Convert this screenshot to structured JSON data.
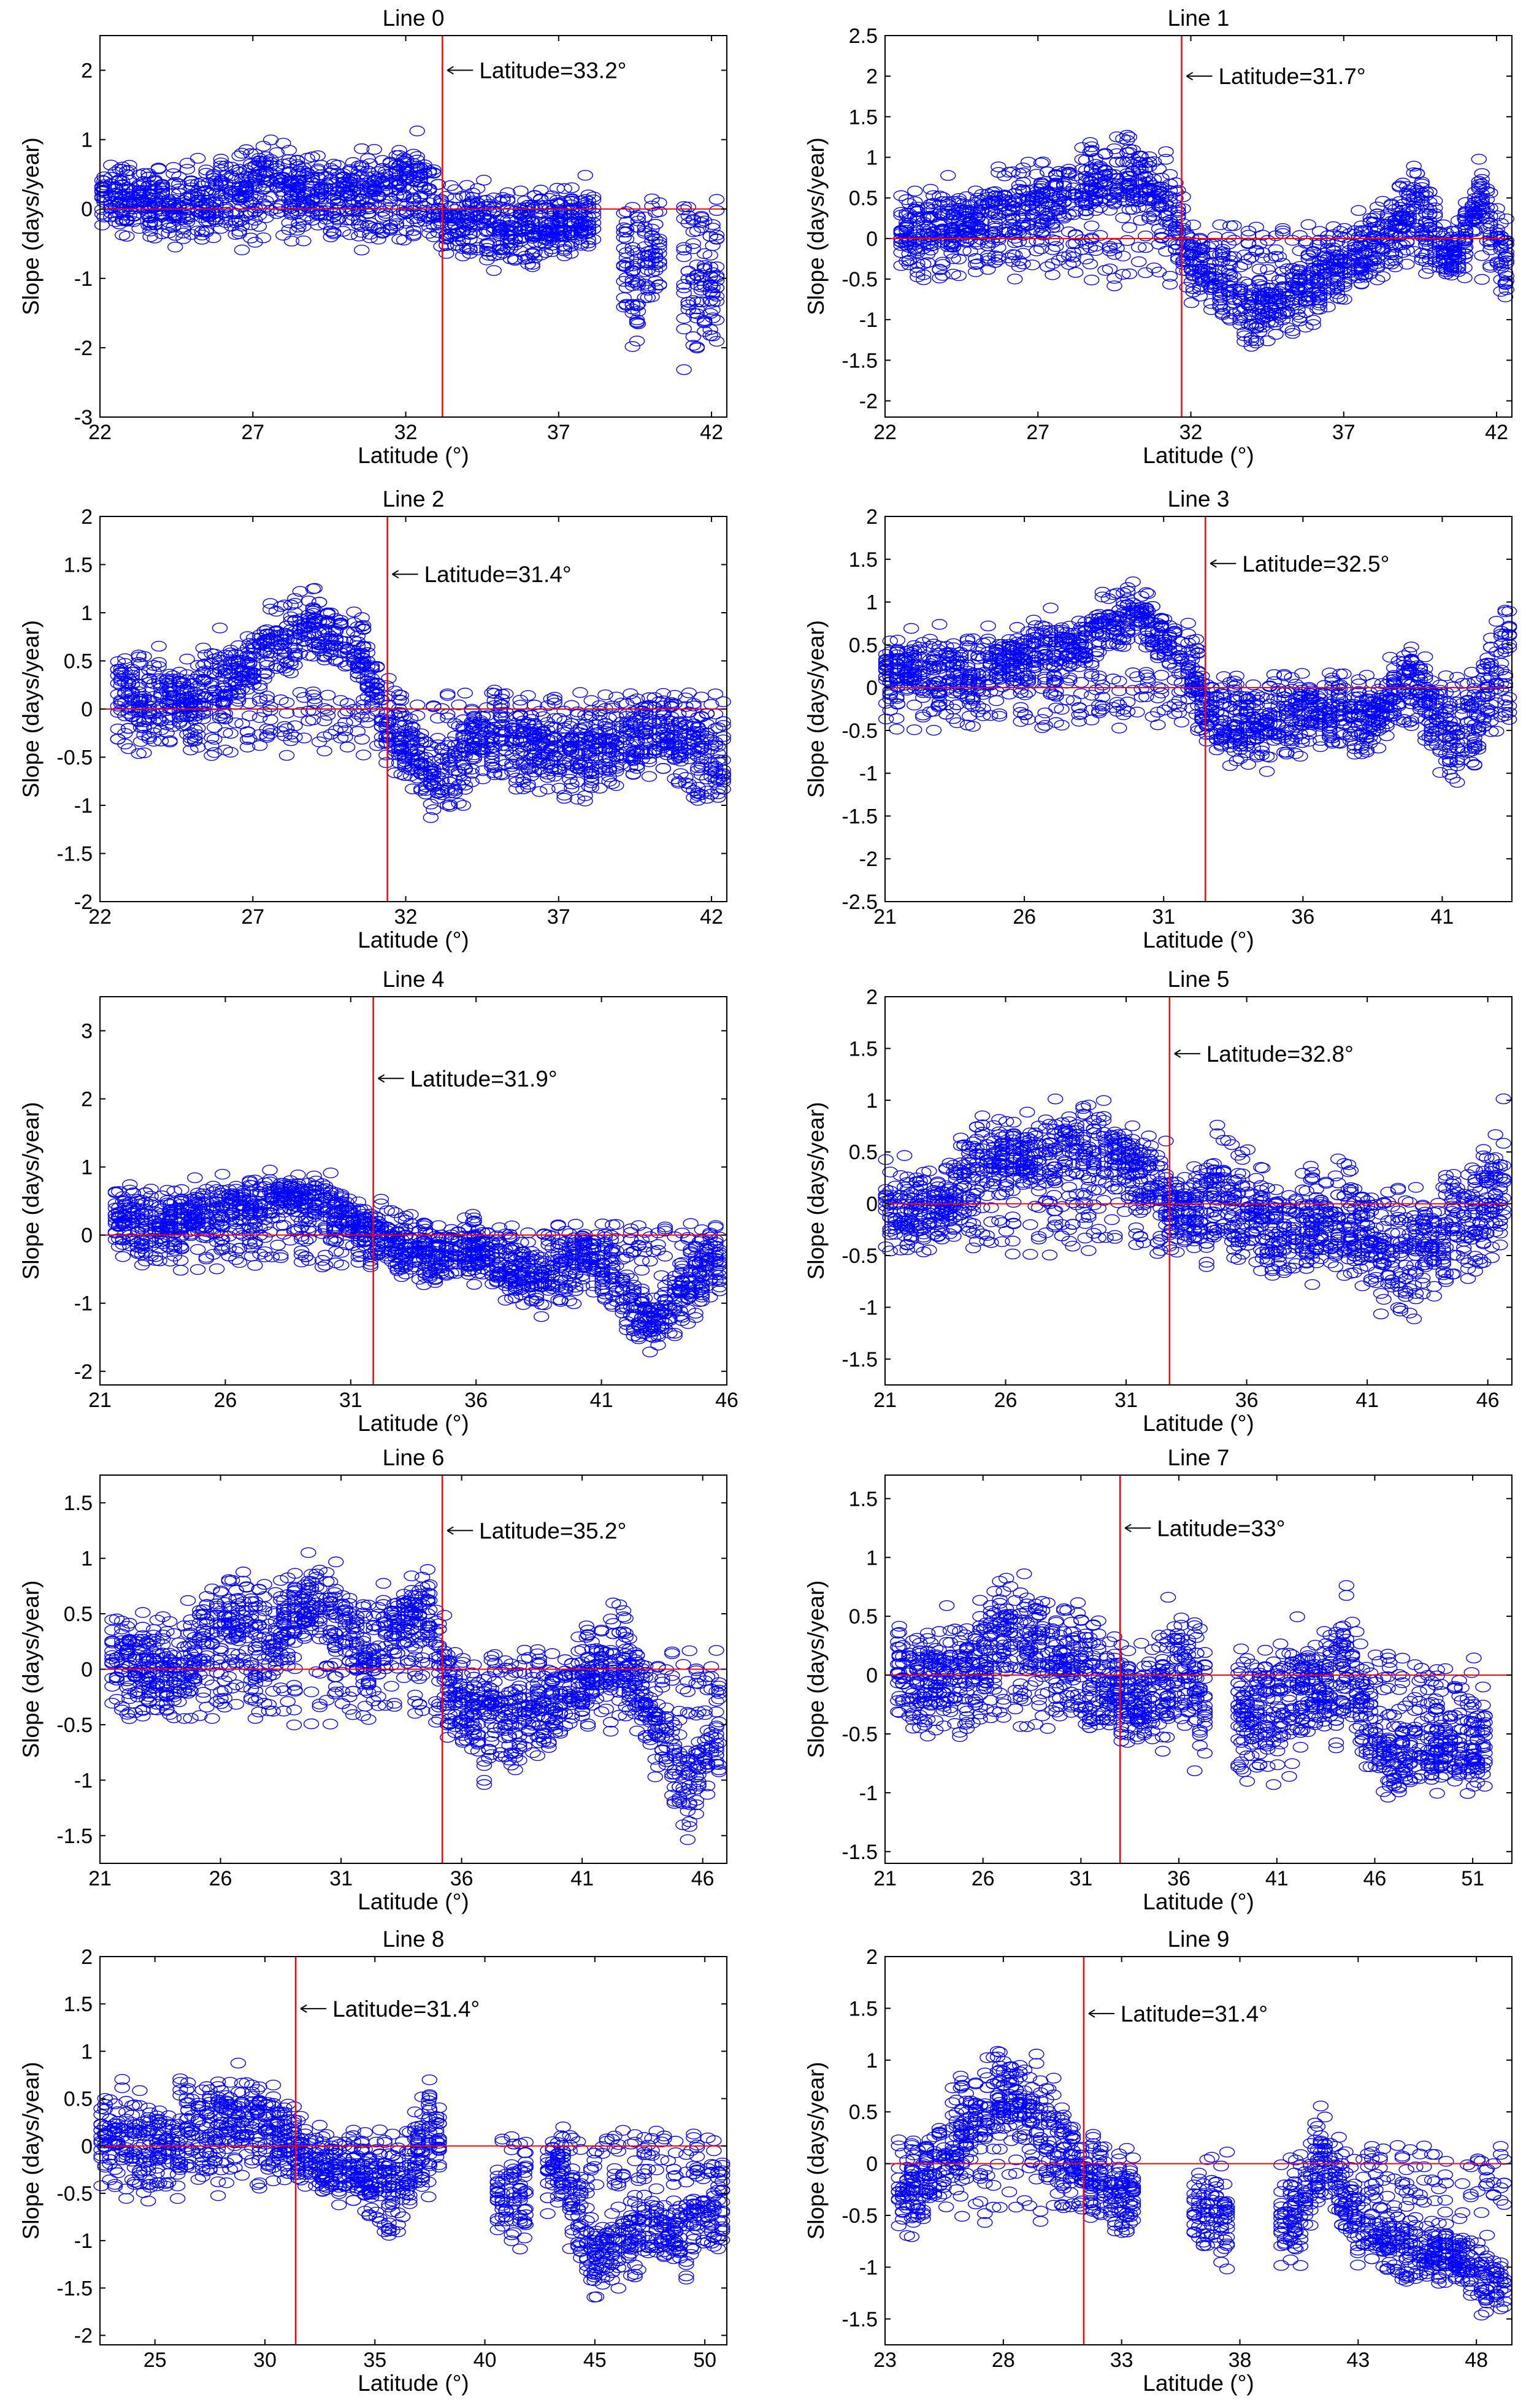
{
  "chart_data": [
    {
      "type": "scatter",
      "title": "Line 0",
      "xlabel": "Latitude (°)",
      "ylabel": "Slope (days/year)",
      "xlim": [
        22,
        42.5
      ],
      "ylim": [
        -3,
        2.5
      ],
      "xticks": [
        22,
        27,
        32,
        37,
        42
      ],
      "yticks": [
        -3,
        -2,
        -1,
        0,
        1,
        2
      ],
      "vline": 33.2,
      "annotation": "Latitude=33.2°",
      "annotation_y": 2.0,
      "segments": [
        [
          22.5,
          0.2,
          0.4
        ],
        [
          25,
          0.1,
          0.45
        ],
        [
          27.5,
          0.45,
          0.45
        ],
        [
          29.5,
          0.25,
          0.4
        ],
        [
          31.5,
          0.4,
          0.45
        ],
        [
          32.5,
          0.5,
          0.5
        ],
        [
          33.2,
          -0.1,
          0.5
        ],
        [
          35,
          -0.3,
          0.5
        ],
        [
          37,
          -0.2,
          0.5
        ],
        [
          38.5,
          -0.2,
          0.5
        ],
        [
          39.5,
          -1.2,
          0.7
        ],
        [
          40.5,
          -0.6,
          0.5
        ],
        [
          41,
          -1.2,
          0.7
        ],
        [
          42,
          -1.2,
          0.7
        ]
      ],
      "gaps": [
        [
          38.2,
          39.0
        ],
        [
          40.5,
          41.0
        ]
      ]
    },
    {
      "type": "scatter",
      "title": "Line 1",
      "xlabel": "Latitude (°)",
      "ylabel": "Slope (days/year)",
      "xlim": [
        22,
        42.5
      ],
      "ylim": [
        -2.2,
        2.5
      ],
      "xticks": [
        22,
        27,
        32,
        37,
        42
      ],
      "yticks": [
        -2,
        -1.5,
        -1,
        -0.5,
        0,
        0.5,
        1,
        1.5,
        2,
        2.5
      ],
      "vline": 31.7,
      "annotation": "Latitude=31.7°",
      "annotation_y": 2.0,
      "segments": [
        [
          23,
          0.1,
          0.45
        ],
        [
          25.5,
          0.3,
          0.4
        ],
        [
          28,
          0.6,
          0.45
        ],
        [
          30,
          0.8,
          0.45
        ],
        [
          31.5,
          0.3,
          0.5
        ],
        [
          32,
          -0.3,
          0.4
        ],
        [
          34,
          -0.9,
          0.4
        ],
        [
          36,
          -0.6,
          0.4
        ],
        [
          38,
          0.0,
          0.5
        ],
        [
          39.5,
          0.5,
          0.4
        ],
        [
          40.5,
          -0.3,
          0.3
        ],
        [
          41.5,
          0.5,
          0.4
        ],
        [
          42.5,
          -0.5,
          0.4
        ]
      ],
      "gaps": []
    },
    {
      "type": "scatter",
      "title": "Line 2",
      "xlabel": "Latitude (°)",
      "ylabel": "Slope (days/year)",
      "xlim": [
        22,
        42.5
      ],
      "ylim": [
        -2,
        2
      ],
      "xticks": [
        22,
        27,
        32,
        37,
        42
      ],
      "yticks": [
        -2,
        -1.5,
        -1,
        -0.5,
        0,
        0.5,
        1,
        1.5,
        2
      ],
      "vline": 31.4,
      "annotation": "Latitude=31.4°",
      "annotation_y": 1.4,
      "segments": [
        [
          23,
          0.2,
          0.4
        ],
        [
          25,
          0.1,
          0.45
        ],
        [
          27,
          0.5,
          0.35
        ],
        [
          29,
          0.9,
          0.35
        ],
        [
          30.5,
          0.6,
          0.35
        ],
        [
          31.4,
          -0.1,
          0.4
        ],
        [
          33,
          -0.8,
          0.35
        ],
        [
          34.5,
          -0.3,
          0.45
        ],
        [
          36,
          -0.4,
          0.4
        ],
        [
          38,
          -0.5,
          0.4
        ],
        [
          40,
          -0.2,
          0.45
        ],
        [
          42.5,
          -0.6,
          0.45
        ]
      ],
      "gaps": []
    },
    {
      "type": "scatter",
      "title": "Line 3",
      "xlabel": "Latitude (°)",
      "ylabel": "Slope (days/year)",
      "xlim": [
        21,
        43.5
      ],
      "ylim": [
        -2.5,
        2
      ],
      "xticks": [
        21,
        26,
        31,
        36,
        41
      ],
      "yticks": [
        -2.5,
        -2,
        -1.5,
        -1,
        -0.5,
        0,
        0.5,
        1,
        1.5,
        2
      ],
      "vline": 32.5,
      "annotation": "Latitude=32.5°",
      "annotation_y": 1.45,
      "segments": [
        [
          21.5,
          0.2,
          0.35
        ],
        [
          24,
          0.2,
          0.4
        ],
        [
          26,
          0.4,
          0.35
        ],
        [
          28,
          0.5,
          0.35
        ],
        [
          30,
          0.9,
          0.3
        ],
        [
          32,
          0.3,
          0.4
        ],
        [
          32.5,
          -0.3,
          0.45
        ],
        [
          34.5,
          -0.5,
          0.45
        ],
        [
          36,
          -0.3,
          0.4
        ],
        [
          38.5,
          -0.4,
          0.35
        ],
        [
          40,
          0.2,
          0.4
        ],
        [
          41,
          -0.6,
          0.5
        ],
        [
          42,
          -0.5,
          0.6
        ],
        [
          43.5,
          0.8,
          0.6
        ]
      ],
      "gaps": []
    },
    {
      "type": "scatter",
      "title": "Line 4",
      "xlabel": "Latitude (°)",
      "ylabel": "Slope (days/year)",
      "xlim": [
        21,
        46
      ],
      "ylim": [
        -2.2,
        3.5
      ],
      "xticks": [
        21,
        26,
        31,
        36,
        41,
        46
      ],
      "yticks": [
        -2,
        -1,
        0,
        1,
        2,
        3
      ],
      "vline": 31.9,
      "annotation": "Latitude=31.9°",
      "annotation_y": 2.3,
      "segments": [
        [
          22,
          0.3,
          0.4
        ],
        [
          24,
          0.2,
          0.45
        ],
        [
          26,
          0.4,
          0.35
        ],
        [
          28.5,
          0.6,
          0.35
        ],
        [
          30.5,
          0.4,
          0.35
        ],
        [
          32,
          0.0,
          0.4
        ],
        [
          34,
          -0.3,
          0.45
        ],
        [
          36,
          -0.2,
          0.45
        ],
        [
          38.5,
          -0.7,
          0.45
        ],
        [
          40.5,
          -0.3,
          0.5
        ],
        [
          43,
          -1.3,
          0.4
        ],
        [
          45.5,
          -0.4,
          0.5
        ]
      ],
      "gaps": []
    },
    {
      "type": "scatter",
      "title": "Line 5",
      "xlabel": "Latitude (°)",
      "ylabel": "Slope (days/year)",
      "xlim": [
        21,
        47
      ],
      "ylim": [
        -1.75,
        2
      ],
      "xticks": [
        21,
        26,
        31,
        36,
        41,
        46
      ],
      "yticks": [
        -1.5,
        -1,
        -0.5,
        0,
        0.5,
        1,
        1.5,
        2
      ],
      "vline": 32.8,
      "annotation": "Latitude=32.8°",
      "annotation_y": 1.45,
      "segments": [
        [
          21.5,
          0.0,
          0.45
        ],
        [
          23.5,
          0.0,
          0.4
        ],
        [
          25,
          0.5,
          0.35
        ],
        [
          27,
          0.4,
          0.35
        ],
        [
          29.5,
          0.6,
          0.4
        ],
        [
          31.5,
          0.4,
          0.35
        ],
        [
          33,
          -0.1,
          0.45
        ],
        [
          35,
          0.1,
          0.5
        ],
        [
          37.5,
          -0.3,
          0.5
        ],
        [
          40,
          -0.1,
          0.5
        ],
        [
          42,
          -0.6,
          0.5
        ],
        [
          44,
          -0.4,
          0.5
        ],
        [
          46.5,
          0.2,
          0.6
        ]
      ],
      "gaps": []
    },
    {
      "type": "scatter",
      "title": "Line 6",
      "xlabel": "Latitude (°)",
      "ylabel": "Slope (days/year)",
      "xlim": [
        21,
        47
      ],
      "ylim": [
        -1.75,
        1.75
      ],
      "xticks": [
        21,
        26,
        31,
        36,
        41,
        46
      ],
      "yticks": [
        -1.5,
        -1,
        -0.5,
        0,
        0.5,
        1,
        1.5
      ],
      "vline": 35.2,
      "annotation": "Latitude=35.2°",
      "annotation_y": 1.25,
      "segments": [
        [
          22,
          0.1,
          0.4
        ],
        [
          24,
          0.0,
          0.45
        ],
        [
          26,
          0.5,
          0.4
        ],
        [
          28,
          0.3,
          0.45
        ],
        [
          30,
          0.6,
          0.35
        ],
        [
          32,
          0.2,
          0.4
        ],
        [
          34.5,
          0.6,
          0.35
        ],
        [
          35.5,
          -0.3,
          0.45
        ],
        [
          37.5,
          -0.5,
          0.45
        ],
        [
          40,
          -0.3,
          0.4
        ],
        [
          42.5,
          0.2,
          0.4
        ],
        [
          44,
          -0.5,
          0.4
        ],
        [
          45.5,
          -1.1,
          0.4
        ],
        [
          46.5,
          -0.6,
          0.4
        ]
      ],
      "gaps": []
    },
    {
      "type": "scatter",
      "title": "Line 7",
      "xlabel": "Latitude (°)",
      "ylabel": "Slope (days/year)",
      "xlim": [
        21,
        53
      ],
      "ylim": [
        -1.6,
        1.7
      ],
      "xticks": [
        21,
        26,
        31,
        36,
        41,
        46,
        51
      ],
      "yticks": [
        -1.5,
        -1,
        -0.5,
        0,
        0.5,
        1,
        1.5
      ],
      "vline": 33,
      "annotation": "Latitude=33°",
      "annotation_y": 1.25,
      "segments": [
        [
          22,
          0.0,
          0.4
        ],
        [
          25,
          0.0,
          0.45
        ],
        [
          27.5,
          0.5,
          0.4
        ],
        [
          30,
          0.2,
          0.45
        ],
        [
          32,
          0.0,
          0.45
        ],
        [
          34,
          -0.3,
          0.4
        ],
        [
          36,
          0.1,
          0.5
        ],
        [
          39.5,
          -0.4,
          0.5
        ],
        [
          42,
          -0.2,
          0.5
        ],
        [
          44.5,
          0.1,
          0.5
        ],
        [
          46.5,
          -0.7,
          0.35
        ],
        [
          49,
          -0.6,
          0.35
        ],
        [
          51.5,
          -0.6,
          0.35
        ]
      ],
      "gaps": [
        [
          37.5,
          39.0
        ]
      ]
    },
    {
      "type": "scatter",
      "title": "Line 8",
      "xlabel": "Latitude (°)",
      "ylabel": "Slope (days/year)",
      "xlim": [
        22.5,
        51
      ],
      "ylim": [
        -2.1,
        2
      ],
      "xticks": [
        25,
        30,
        35,
        40,
        45,
        50
      ],
      "yticks": [
        -2,
        -1.5,
        -1,
        -0.5,
        0,
        0.5,
        1,
        1.5,
        2
      ],
      "vline": 31.4,
      "annotation": "Latitude=31.4°",
      "annotation_y": 1.45,
      "segments": [
        [
          23,
          0.1,
          0.45
        ],
        [
          25,
          0.0,
          0.5
        ],
        [
          27.5,
          0.3,
          0.45
        ],
        [
          30,
          0.3,
          0.4
        ],
        [
          32,
          -0.1,
          0.35
        ],
        [
          34,
          -0.3,
          0.35
        ],
        [
          36,
          -0.5,
          0.45
        ],
        [
          37.5,
          0.2,
          0.5
        ],
        [
          41,
          -0.7,
          0.4
        ],
        [
          43.5,
          -0.2,
          0.4
        ],
        [
          45,
          -1.2,
          0.4
        ],
        [
          47,
          -0.9,
          0.4
        ],
        [
          49,
          -0.9,
          0.4
        ],
        [
          51,
          -0.6,
          0.4
        ]
      ],
      "gaps": [
        [
          38.0,
          40.5
        ],
        [
          42.0,
          42.8
        ]
      ]
    },
    {
      "type": "scatter",
      "title": "Line 9",
      "xlabel": "Latitude (°)",
      "ylabel": "Slope (days/year)",
      "xlim": [
        23,
        49.5
      ],
      "ylim": [
        -1.75,
        2
      ],
      "xticks": [
        23,
        28,
        33,
        38,
        43,
        48
      ],
      "yticks": [
        -1.5,
        -1,
        -0.5,
        0,
        0.5,
        1,
        1.5,
        2
      ],
      "vline": 31.4,
      "annotation": "Latitude=31.4°",
      "annotation_y": 1.45,
      "segments": [
        [
          24,
          -0.3,
          0.45
        ],
        [
          26,
          0.3,
          0.45
        ],
        [
          28,
          0.7,
          0.4
        ],
        [
          30,
          0.3,
          0.5
        ],
        [
          31.5,
          -0.1,
          0.4
        ],
        [
          32.5,
          -0.3,
          0.3
        ],
        [
          36.5,
          -0.5,
          0.4
        ],
        [
          40.5,
          -0.6,
          0.4
        ],
        [
          41.5,
          0.2,
          0.45
        ],
        [
          43,
          -0.6,
          0.35
        ],
        [
          45,
          -0.8,
          0.3
        ],
        [
          47,
          -0.9,
          0.3
        ],
        [
          49,
          -1.2,
          0.3
        ]
      ],
      "gaps": [
        [
          33.5,
          36.0
        ],
        [
          37.5,
          39.5
        ]
      ]
    }
  ]
}
